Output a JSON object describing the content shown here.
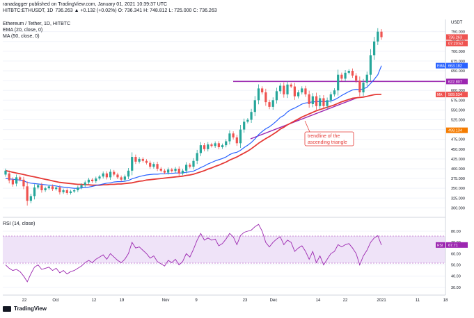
{
  "header": {
    "author_line": "ranadagger published on TradingView.com, January 01, 2021 10:39:37 UTC",
    "symbol_line": "HITBTC:ETHUSDT, 1D",
    "quote": "736.263 ▲ +0.132 (+0.02%) O: 736.341 H: 748.812 L: 725.000 C: 736.263",
    "instrument": "Ethereum / Tether, 1D, HITBTC",
    "ema_label": "EMA (20, close, 0)",
    "ma_label": "MA (50, close, 0)",
    "rsi_label": "RSI (14, close)"
  },
  "footer": {
    "brand": "TradingView"
  },
  "price_axis": {
    "currency": "USDT",
    "ticks": [
      "750.000",
      "725.000",
      "700.000",
      "675.000",
      "650.000",
      "625.000",
      "600.000",
      "575.000",
      "550.000",
      "525.000",
      "500.000",
      "475.000",
      "450.000",
      "425.000",
      "400.000",
      "375.000",
      "350.000",
      "325.000",
      "300.000"
    ],
    "markers": [
      {
        "label": "736.263",
        "value": 736.263,
        "color": "#ef5350"
      },
      {
        "label": "07:20:52",
        "value": 720,
        "color": "#ef5350"
      },
      {
        "label": "EMA",
        "text": "663.182",
        "value": 663.182,
        "color": "#2962ff"
      },
      {
        "label": "",
        "text": "622.807",
        "value": 622.807,
        "color": "#9c27b0"
      },
      {
        "label": "MA",
        "text": "589.534",
        "value": 589.534,
        "color": "#ef5350"
      },
      {
        "label": "",
        "text": "498.134",
        "value": 498.134,
        "color": "#f57c00"
      }
    ]
  },
  "rsi_axis": {
    "ticks": [
      "80.00",
      "70.00",
      "60.00",
      "50.00",
      "40.00",
      "30.00"
    ],
    "marker": {
      "label": "RSI",
      "text": "67.71",
      "value": 67.71
    }
  },
  "time_axis": [
    "22",
    "Oct",
    "12",
    "19",
    "Nov",
    "9",
    "23",
    "Dec",
    "14",
    "22",
    "2021",
    "11",
    "18"
  ],
  "annotation": {
    "text1": "trendline of the",
    "text2": "ascending triangle"
  },
  "chart_data": {
    "type": "candlestick",
    "title": "Ethereum / Tether, 1D, HITBTC",
    "ylabel": "USDT",
    "ylim": [
      290,
      760
    ],
    "resistance_level": 622.807,
    "trendline": [
      [
        0,
        590
      ],
      [
        1,
        620
      ]
    ],
    "colors": {
      "up": "#26a69a",
      "down": "#ef5350",
      "ema": "#2962ff",
      "ma": "#e53935",
      "resistance": "#9c27b0",
      "trendline": "#9c27b0",
      "rsi": "#9c27b0",
      "rsi_band": "#e9dcf5"
    },
    "candles": [
      [
        385,
        395
      ],
      [
        388,
        370
      ],
      [
        372,
        360
      ],
      [
        362,
        378
      ],
      [
        378,
        372
      ],
      [
        372,
        355
      ],
      [
        355,
        318
      ],
      [
        318,
        330
      ],
      [
        330,
        352
      ],
      [
        352,
        358
      ],
      [
        358,
        345
      ],
      [
        345,
        350
      ],
      [
        350,
        355
      ],
      [
        355,
        348
      ],
      [
        348,
        352
      ],
      [
        352,
        340
      ],
      [
        340,
        345
      ],
      [
        345,
        338
      ],
      [
        338,
        342
      ],
      [
        342,
        345
      ],
      [
        345,
        352
      ],
      [
        352,
        358
      ],
      [
        358,
        365
      ],
      [
        365,
        372
      ],
      [
        372,
        368
      ],
      [
        368,
        375
      ],
      [
        375,
        380
      ],
      [
        380,
        388
      ],
      [
        388,
        378
      ],
      [
        378,
        392
      ],
      [
        392,
        385
      ],
      [
        385,
        378
      ],
      [
        378,
        372
      ],
      [
        372,
        380
      ],
      [
        380,
        395
      ],
      [
        395,
        430
      ],
      [
        430,
        418
      ],
      [
        418,
        425
      ],
      [
        425,
        420
      ],
      [
        420,
        415
      ],
      [
        415,
        405
      ],
      [
        405,
        412
      ],
      [
        412,
        400
      ],
      [
        400,
        395
      ],
      [
        395,
        390
      ],
      [
        390,
        398
      ],
      [
        398,
        394
      ],
      [
        394,
        400
      ],
      [
        400,
        388
      ],
      [
        388,
        395
      ],
      [
        395,
        410
      ],
      [
        410,
        405
      ],
      [
        405,
        420
      ],
      [
        420,
        440
      ],
      [
        440,
        460
      ],
      [
        460,
        450
      ],
      [
        450,
        462
      ],
      [
        462,
        458
      ],
      [
        458,
        465
      ],
      [
        465,
        455
      ],
      [
        455,
        460
      ],
      [
        460,
        470
      ],
      [
        470,
        490
      ],
      [
        490,
        480
      ],
      [
        480,
        465
      ],
      [
        465,
        500
      ],
      [
        500,
        520
      ],
      [
        520,
        525
      ],
      [
        525,
        545
      ],
      [
        545,
        575
      ],
      [
        575,
        605
      ],
      [
        605,
        595
      ],
      [
        595,
        570
      ],
      [
        570,
        558
      ],
      [
        558,
        575
      ],
      [
        575,
        598
      ],
      [
        598,
        612
      ],
      [
        612,
        590
      ],
      [
        590,
        615
      ],
      [
        615,
        610
      ],
      [
        610,
        585
      ],
      [
        585,
        595
      ],
      [
        595,
        605
      ],
      [
        605,
        590
      ],
      [
        590,
        565
      ],
      [
        565,
        585
      ],
      [
        585,
        560
      ],
      [
        560,
        580
      ],
      [
        580,
        560
      ],
      [
        560,
        575
      ],
      [
        575,
        590
      ],
      [
        590,
        600
      ],
      [
        600,
        640
      ],
      [
        640,
        630
      ],
      [
        630,
        645
      ],
      [
        645,
        650
      ],
      [
        650,
        638
      ],
      [
        638,
        625
      ],
      [
        625,
        595
      ],
      [
        595,
        620
      ],
      [
        620,
        640
      ],
      [
        640,
        690
      ],
      [
        690,
        725
      ],
      [
        725,
        750
      ],
      [
        750,
        736
      ]
    ],
    "ema20": [
      375,
      374,
      373,
      372,
      371,
      369,
      365,
      363,
      362,
      361,
      360,
      359,
      358,
      357,
      356,
      354,
      353,
      352,
      351,
      350,
      350,
      351,
      352,
      353,
      355,
      357,
      359,
      361,
      363,
      364,
      366,
      367,
      367,
      368,
      370,
      374,
      377,
      380,
      382,
      384,
      385,
      386,
      386,
      387,
      387,
      388,
      388,
      389,
      389,
      389,
      391,
      392,
      394,
      398,
      403,
      407,
      412,
      416,
      420,
      423,
      426,
      430,
      436,
      440,
      442,
      447,
      454,
      460,
      467,
      476,
      487,
      495,
      502,
      507,
      514,
      522,
      531,
      536,
      545,
      551,
      555,
      560,
      565,
      568,
      569,
      571,
      571,
      572,
      571,
      572,
      573,
      576,
      581,
      587,
      592,
      597,
      601,
      603,
      602,
      604,
      608,
      618,
      628,
      640,
      663
    ],
    "ma50": [
      395,
      393,
      391,
      389,
      387,
      385,
      383,
      381,
      379,
      377,
      375,
      373,
      371,
      369,
      367,
      365,
      364,
      363,
      362,
      361,
      360,
      360,
      359,
      359,
      358,
      358,
      358,
      359,
      359,
      360,
      360,
      361,
      361,
      362,
      363,
      364,
      366,
      368,
      369,
      371,
      372,
      373,
      374,
      375,
      376,
      377,
      378,
      379,
      380,
      381,
      383,
      384,
      386,
      389,
      392,
      395,
      399,
      402,
      406,
      409,
      413,
      417,
      422,
      426,
      430,
      435,
      440,
      445,
      451,
      458,
      465,
      471,
      477,
      482,
      488,
      494,
      501,
      506,
      512,
      517,
      522,
      527,
      532,
      536,
      540,
      544,
      548,
      551,
      554,
      557,
      560,
      563,
      567,
      571,
      574,
      577,
      580,
      581,
      582,
      583,
      585,
      587,
      589,
      590,
      590
    ],
    "rsi": [
      50,
      47,
      45,
      46,
      44,
      40,
      35,
      42,
      48,
      50,
      46,
      47,
      48,
      45,
      47,
      43,
      45,
      42,
      44,
      45,
      47,
      49,
      52,
      54,
      52,
      55,
      57,
      59,
      55,
      60,
      57,
      54,
      52,
      55,
      60,
      70,
      65,
      66,
      63,
      60,
      56,
      58,
      53,
      51,
      49,
      54,
      52,
      55,
      50,
      53,
      60,
      57,
      64,
      72,
      78,
      72,
      74,
      72,
      73,
      67,
      69,
      73,
      78,
      75,
      68,
      76,
      79,
      80,
      81,
      84,
      86,
      80,
      70,
      66,
      70,
      73,
      75,
      68,
      72,
      70,
      62,
      65,
      67,
      62,
      55,
      62,
      52,
      58,
      50,
      55,
      60,
      62,
      68,
      66,
      68,
      69,
      65,
      60,
      50,
      58,
      63,
      70,
      74,
      76,
      67.71
    ]
  }
}
